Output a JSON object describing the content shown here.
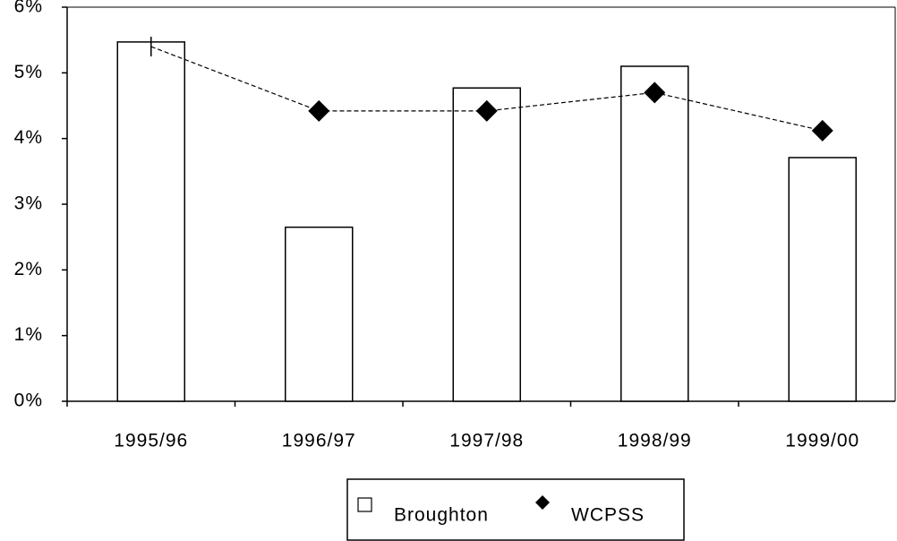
{
  "chart_data": {
    "type": "bar",
    "categories": [
      "1995/96",
      "1996/97",
      "1997/98",
      "1998/99",
      "1999/00"
    ],
    "series": [
      {
        "name": "Broughton",
        "type": "bar",
        "color": "#ffffff",
        "values": [
          5.47,
          2.65,
          4.77,
          5.1,
          3.71
        ]
      },
      {
        "name": "WCPSS",
        "type": "line",
        "color": "#000000",
        "values": [
          5.4,
          4.42,
          4.42,
          4.7,
          4.12
        ]
      }
    ],
    "ylim": [
      0,
      6
    ],
    "yticks": [
      {
        "value": 0,
        "label": "0%"
      },
      {
        "value": 1,
        "label": "1%"
      },
      {
        "value": 2,
        "label": "2%"
      },
      {
        "value": 3,
        "label": "3%"
      },
      {
        "value": 4,
        "label": "4%"
      },
      {
        "value": 5,
        "label": "5%"
      },
      {
        "value": 6,
        "label": "6%"
      }
    ],
    "grid": false,
    "legend": "bottom"
  }
}
